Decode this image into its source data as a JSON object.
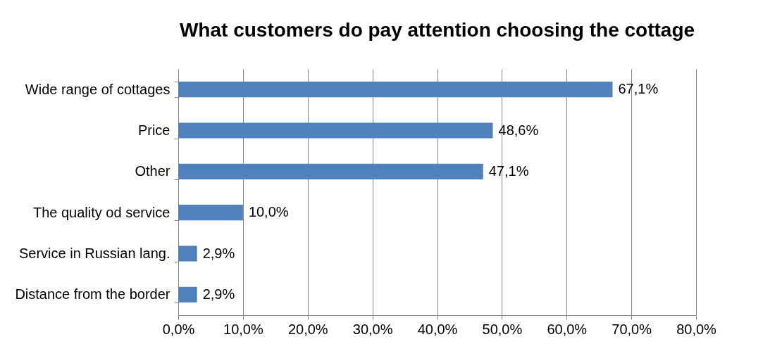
{
  "chart_data": {
    "type": "bar",
    "orientation": "horizontal",
    "title": "What customers do pay attention choosing the cottage",
    "categories": [
      "Wide range of cottages",
      "Price",
      "Other",
      "The quality od service",
      "Service in Russian lang.",
      "Distance from the border"
    ],
    "values": [
      67.1,
      48.6,
      47.1,
      10.0,
      2.9,
      2.9
    ],
    "value_labels": [
      "67,1%",
      "48,6%",
      "47,1%",
      "10,0%",
      "2,9%",
      "2,9%"
    ],
    "color": "#4f81bd",
    "xlim": [
      0,
      80
    ],
    "xticks": [
      {
        "value": 0,
        "label": "0,0%"
      },
      {
        "value": 10,
        "label": "10,0%"
      },
      {
        "value": 20,
        "label": "20,0%"
      },
      {
        "value": 30,
        "label": "30,0%"
      },
      {
        "value": 40,
        "label": "40,0%"
      },
      {
        "value": 50,
        "label": "50,0%"
      },
      {
        "value": 60,
        "label": "60,0%"
      },
      {
        "value": 70,
        "label": "70,0%"
      },
      {
        "value": 80,
        "label": "80,0%"
      }
    ],
    "grid": "x"
  }
}
